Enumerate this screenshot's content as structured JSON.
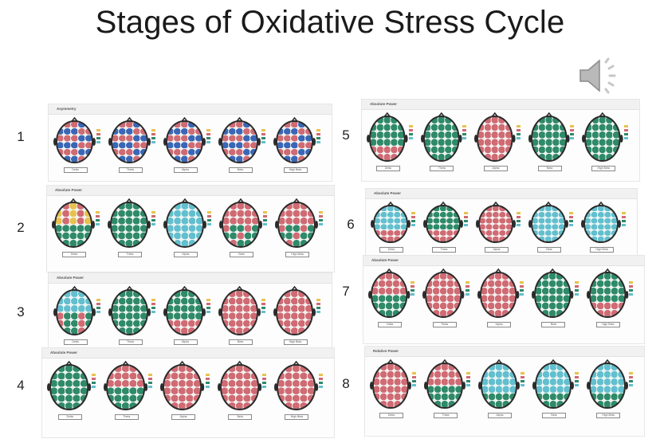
{
  "title": "Stages of Oxidative Stress Cycle",
  "speaker_icon": "speaker-icon",
  "colors": {
    "green": "#2f8a69",
    "red": "#cf6b73",
    "blue": "#3a67b5",
    "cyan": "#63bfce",
    "yellow": "#e8c24f"
  },
  "bands": [
    "Delta",
    "Theta",
    "Alpha",
    "Beta",
    "High Beta"
  ],
  "stages": [
    {
      "number": "1",
      "panel_title": "Asymmetry",
      "maps": [
        "asym",
        "asym",
        "asym",
        "asym",
        "asym"
      ]
    },
    {
      "number": "2",
      "panel_title": "Absolute Power",
      "maps": [
        "green-top-mix",
        "green",
        "cyan",
        "mix",
        "mix"
      ]
    },
    {
      "number": "3",
      "panel_title": "Absolute Power",
      "maps": [
        "cyan-mix",
        "green",
        "green-red",
        "red",
        "red"
      ]
    },
    {
      "number": "4",
      "panel_title": "Absolute Power",
      "maps": [
        "green",
        "red-top",
        "red",
        "red",
        "red"
      ]
    },
    {
      "number": "5",
      "panel_title": "Absolute Power",
      "maps": [
        "green-red",
        "green",
        "red",
        "green",
        "green"
      ]
    },
    {
      "number": "6",
      "panel_title": "Absolute Power",
      "maps": [
        "cyan-red",
        "green-red",
        "red",
        "cyan",
        "cyan"
      ]
    },
    {
      "number": "7",
      "panel_title": "Absolute Power",
      "maps": [
        "red-green",
        "red",
        "red",
        "green",
        "green-red"
      ]
    },
    {
      "number": "8",
      "panel_title": "Relative Power",
      "maps": [
        "red",
        "red-green",
        "cyan-green",
        "cyan-green",
        "cyan-green"
      ]
    }
  ]
}
